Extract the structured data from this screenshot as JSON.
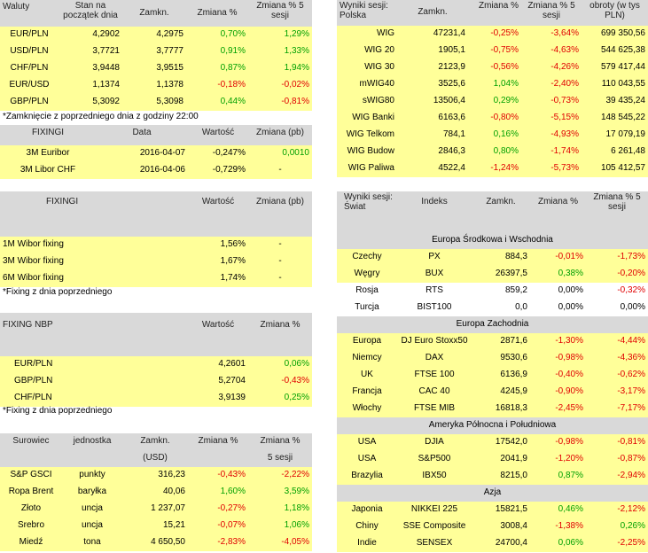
{
  "waluty": {
    "headers": [
      "Waluty",
      "Stan na początek dnia",
      "Zamkn.",
      "Zmiana %",
      "Zmiana % 5 sesji"
    ],
    "rows": [
      [
        "EUR/PLN",
        "4,2902",
        "4,2975",
        "0,70%",
        "1,29%"
      ],
      [
        "USD/PLN",
        "3,7721",
        "3,7777",
        "0,91%",
        "1,33%"
      ],
      [
        "CHF/PLN",
        "3,9448",
        "3,9515",
        "0,87%",
        "1,94%"
      ],
      [
        "EUR/USD",
        "1,1374",
        "1,1378",
        "-0,18%",
        "-0,02%"
      ],
      [
        "GBP/PLN",
        "5,3092",
        "5,3098",
        "0,44%",
        "-0,81%"
      ]
    ],
    "note": "*Zamknięcie z poprzedniego dnia z godziny 22:00"
  },
  "fixingi_libor": {
    "headers": [
      "FIXINGI",
      "Data",
      "Wartość",
      "Zmiana (pb)"
    ],
    "rows": [
      [
        "3M Euribor",
        "2016-04-07",
        "-0,247%",
        "0,0010"
      ],
      [
        "3M Libor CHF",
        "2016-04-06",
        "-0,729%",
        "-"
      ]
    ]
  },
  "fixingi_wibor": {
    "headers": [
      "FIXINGI",
      "Wartość",
      "Zmiana (pb)"
    ],
    "rows": [
      [
        "1M Wibor fixing",
        "1,56%",
        "-"
      ],
      [
        "3M Wibor fixing",
        "1,67%",
        "-"
      ],
      [
        "6M Wibor fixing",
        "1,74%",
        "-"
      ]
    ],
    "note": "*Fixing z dnia poprzedniego"
  },
  "fixing_nbp": {
    "headers": [
      "FIXING NBP",
      "Wartość",
      "Zmiana %"
    ],
    "rows": [
      [
        "EUR/PLN",
        "4,2601",
        "0,06%"
      ],
      [
        "GBP/PLN",
        "5,2704",
        "-0,43%"
      ],
      [
        "CHF/PLN",
        "3,9139",
        "0,25%"
      ]
    ],
    "note": "*Fixing z dnia poprzedniego"
  },
  "surowce": {
    "headers": [
      "Surowiec",
      "jednostka",
      "Zamkn.",
      "Zmiana %",
      "Zmiana %"
    ],
    "headers2": [
      "",
      "",
      "(USD)",
      "",
      "5 sesji"
    ],
    "rows": [
      [
        "S&P GSCI",
        "punkty",
        "316,23",
        "-0,43%",
        "-2,22%"
      ],
      [
        "Ropa Brent",
        "baryłka",
        "40,06",
        "1,60%",
        "3,59%"
      ],
      [
        "Złoto",
        "uncja",
        "1 237,07",
        "-0,27%",
        "1,18%"
      ],
      [
        "Srebro",
        "uncja",
        "15,21",
        "-0,07%",
        "1,06%"
      ],
      [
        "Miedź",
        "tona",
        "4 650,50",
        "-2,83%",
        "-4,05%"
      ]
    ]
  },
  "polska": {
    "headers": [
      "Wyniki sesji: Polska",
      "Zamkn.",
      "Zmiana %",
      "Zmiana % 5 sesji",
      "obroty (w tys PLN)"
    ],
    "rows": [
      [
        "WIG",
        "47231,4",
        "-0,25%",
        "-3,64%",
        "699 350,56"
      ],
      [
        "WIG 20",
        "1905,1",
        "-0,75%",
        "-4,63%",
        "544 625,38"
      ],
      [
        "WIG 30",
        "2123,9",
        "-0,56%",
        "-4,26%",
        "579 417,44"
      ],
      [
        "mWIG40",
        "3525,6",
        "1,04%",
        "-2,40%",
        "110 043,55"
      ],
      [
        "sWIG80",
        "13506,4",
        "0,29%",
        "-0,73%",
        "39 435,24"
      ],
      [
        "WIG Banki",
        "6163,6",
        "-0,80%",
        "-5,15%",
        "148 545,22"
      ],
      [
        "WIG Telkom",
        "784,1",
        "0,16%",
        "-4,93%",
        "17 079,19"
      ],
      [
        "WIG Budow",
        "2846,3",
        "0,80%",
        "-1,74%",
        "6 261,48"
      ],
      [
        "WIG Paliwa",
        "4522,4",
        "-1,24%",
        "-5,73%",
        "105 412,57"
      ]
    ]
  },
  "swiat": {
    "headers": [
      "Wyniki sesji: Świat",
      "Indeks",
      "Zamkn.",
      "Zmiana %",
      "Zmiana % 5 sesji"
    ],
    "groups": [
      {
        "name": "Europa Środkowa i Wschodnia",
        "rows": [
          [
            "Czechy",
            "PX",
            "884,3",
            "-0,01%",
            "-1,73%"
          ],
          [
            "Węgry",
            "BUX",
            "26397,5",
            "0,38%",
            "-0,20%"
          ],
          [
            "Rosja",
            "RTS",
            "859,2",
            "0,00%",
            "-0,32%"
          ],
          [
            "Turcja",
            "BIST100",
            "0,0",
            "0,00%",
            "0,00%"
          ]
        ]
      },
      {
        "name": "Europa Zachodnia",
        "rows": [
          [
            "Europa",
            "DJ Euro Stoxx50",
            "2871,6",
            "-1,30%",
            "-4,44%"
          ],
          [
            "Niemcy",
            "DAX",
            "9530,6",
            "-0,98%",
            "-4,36%"
          ],
          [
            "UK",
            "FTSE 100",
            "6136,9",
            "-0,40%",
            "-0,62%"
          ],
          [
            "Francja",
            "CAC 40",
            "4245,9",
            "-0,90%",
            "-3,17%"
          ],
          [
            "Włochy",
            "FTSE MIB",
            "16818,3",
            "-2,45%",
            "-7,17%"
          ]
        ]
      },
      {
        "name": "Ameryka Północna i Południowa",
        "rows": [
          [
            "USA",
            "DJIA",
            "17542,0",
            "-0,98%",
            "-0,81%"
          ],
          [
            "USA",
            "S&P500",
            "2041,9",
            "-1,20%",
            "-0,87%"
          ],
          [
            "Brazylia",
            "IBX50",
            "8215,0",
            "0,87%",
            "-2,94%"
          ]
        ]
      },
      {
        "name": "Azja",
        "rows": [
          [
            "Japonia",
            "NIKKEI 225",
            "15821,5",
            "0,46%",
            "-2,12%"
          ],
          [
            "Chiny",
            "SSE Composite",
            "3008,4",
            "-1,38%",
            "0,26%"
          ],
          [
            "Indie",
            "SENSEX",
            "24700,4",
            "0,06%",
            "-2,25%"
          ]
        ]
      }
    ]
  },
  "colors": {
    "header_bg": "#d9d9d9",
    "row_bg": "#ffff99",
    "positive": "#00a000",
    "negative": "#e00000"
  }
}
